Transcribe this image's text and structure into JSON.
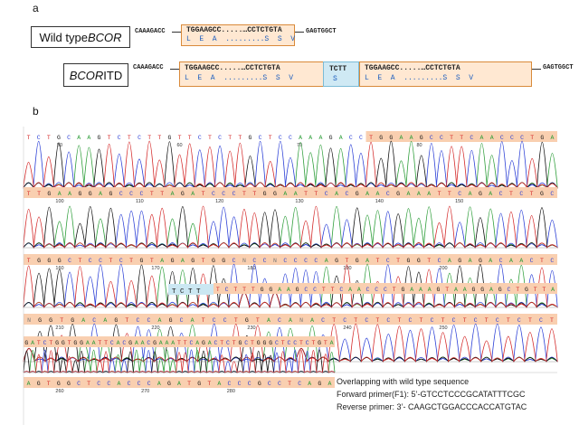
{
  "panel_a": {
    "label": "a",
    "wildtype": {
      "label_pre": "Wild type ",
      "label_italic": "BCOR",
      "left_flank": "CAAAGACC",
      "right_flank": "GAGTGGCT",
      "seq_top": "TGGAAGCC.....…CCTCTGTA",
      "seq_bottom": "L  E  A  .........S  S  V"
    },
    "itd": {
      "label_italic": "BCOR",
      "label_post": " ITD",
      "left_flank": "CAAAGACC",
      "right_flank": "GAGTGGCT",
      "seq1_top": "TGGAAGCC.....…CCTCTGTA",
      "seq1_bottom": "L  E  A  .........S  S  V",
      "insert_top": "TCTT",
      "insert_bottom": "S",
      "seq2_top": "TGGAAGCC.....…CCTCTGTA",
      "seq2_bottom": "L  E  A  .........S  S  V"
    }
  },
  "panel_b": {
    "label": "b",
    "rows": [
      {
        "seq": "TCTGCAAGTCTCTTGTTCTCTTGCTCCAAAGACCTGGAAGCCTTCAACCCTGA",
        "ticks": [
          "50",
          "60",
          "70",
          "80"
        ],
        "highlight_from": 34
      },
      {
        "seq": "TTGAAGGAGCCCTTAGATCCCTTGGAATTCACGAACGAAATTCAGACTCTGC",
        "ticks": [
          "100",
          "110",
          "120",
          "130",
          "140",
          "150"
        ],
        "highlight_from": 0
      },
      {
        "seq": "TGGGCTCCTCTGTAGAGTGGCNCCNCCCCAGTGATCTGGTCAGAGACAACTC",
        "ticks": [
          "160",
          "170",
          "180",
          "190",
          "200"
        ],
        "highlight_from": 0
      },
      {
        "seq": "TCTTTGGAAGCCTTCAACCCTGAAAGTAAGGAGCTGTTA",
        "ticks": [],
        "highlight_from": 0
      },
      {
        "seq": "NGGTGACAGTCCAGCATCCTGTACANACTCTCTCTCTCTCTCTCTCTCT",
        "ticks": [
          "210",
          "220",
          "230",
          "240",
          "250"
        ],
        "highlight_from": 0
      },
      {
        "seq": "GATCTGGTGGAATTCACGAACGAAATTCAGACTCTGCTGGGCTCCTCTGTA",
        "ticks": [],
        "highlight_from": 0
      },
      {
        "seq": "AGTGGCTCCACCCAGATGTACCCGCCTCAGA",
        "ticks": [
          "260",
          "270",
          "280"
        ],
        "highlight_from": 0
      }
    ],
    "legend": {
      "line1": "Overlapping with wild type sequence",
      "line2": "Forward primer(F1): 5’-GTCCTCCCGCATATTTCGC",
      "line3": "Reverse primer: 3’- CAAGCTGGACCCACCATGTAC"
    }
  },
  "colors": {
    "A": "#2e9e3a",
    "C": "#2b3fd6",
    "G": "#111111",
    "T": "#d42a2a",
    "N": "#777777",
    "highlight_orange": "#f9cfb0",
    "highlight_blue": "#cbe7f2",
    "box_border": "#d98a3a"
  }
}
